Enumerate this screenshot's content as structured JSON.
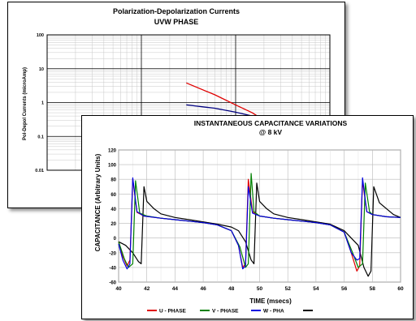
{
  "chart_data": [
    {
      "type": "line",
      "title": "Polarization-Depolarization Currents",
      "subtitle": "UVW PHASE",
      "ylabel": "Pol-Depol Currents (microAmp)",
      "xlabel": "",
      "yscale": "log",
      "ylim": [
        0.01,
        100
      ],
      "xlim": [
        1,
        1000
      ],
      "y_ticks": [
        "100",
        "10",
        "1",
        "0.1",
        "0.01"
      ],
      "grid": true,
      "legend": "none",
      "series": [
        {
          "color": "#e00000",
          "x": [
            30,
            60,
            100,
            150,
            200,
            300,
            400,
            600,
            800
          ],
          "y": [
            3.8,
            1.7,
            0.85,
            0.5,
            0.3,
            0.17,
            0.11,
            0.075,
            0.055
          ]
        },
        {
          "color": "#000080",
          "x": [
            30,
            60,
            100,
            150,
            200,
            300,
            400,
            600,
            800
          ],
          "y": [
            0.85,
            0.68,
            0.52,
            0.4,
            0.28,
            0.17,
            0.12,
            0.08,
            0.055
          ]
        }
      ]
    },
    {
      "type": "line",
      "title": "INSTANTANEOUS CAPACITANCE VARIATIONS",
      "subtitle": "@ 8 kV",
      "xlabel": "TIME (msecs)",
      "ylabel": "CAPACITANCE (Arbitrary Units)",
      "xlim": [
        40,
        60
      ],
      "ylim": [
        -60,
        120
      ],
      "x_ticks": [
        40,
        42,
        44,
        46,
        48,
        50,
        52,
        54,
        56,
        58,
        60
      ],
      "y_ticks": [
        120,
        100,
        80,
        60,
        40,
        20,
        0,
        -20,
        -40,
        -60
      ],
      "grid": true,
      "legend": "bottom",
      "series": [
        {
          "name": "U - PHASE",
          "color": "#e00000",
          "x": [
            40,
            40.3,
            40.6,
            40.8,
            41.0,
            41.3,
            41.8,
            43,
            44,
            45,
            46,
            47,
            48,
            48.5,
            48.8,
            49.0,
            49.2,
            49.5,
            50,
            51,
            52,
            53,
            54,
            55,
            56,
            56.5,
            56.9,
            57.1,
            57.3,
            57.6,
            58,
            59,
            60
          ],
          "y": [
            -5,
            -25,
            -38,
            -30,
            80,
            35,
            30,
            27,
            25,
            23,
            21,
            18,
            10,
            -10,
            -40,
            -35,
            80,
            36,
            30,
            27,
            25,
            23,
            21,
            18,
            8,
            -20,
            -45,
            -38,
            78,
            36,
            32,
            29,
            28
          ]
        },
        {
          "name": "V - PHASE",
          "color": "#008000",
          "x": [
            40,
            40.4,
            40.7,
            41.0,
            41.2,
            41.5,
            42,
            43,
            44,
            45,
            46,
            47,
            48,
            48.6,
            49.0,
            49.2,
            49.4,
            49.6,
            50,
            51,
            52,
            53,
            54,
            55,
            56,
            56.6,
            57.0,
            57.3,
            57.5,
            57.8,
            58,
            59,
            60
          ],
          "y": [
            -5,
            -28,
            -40,
            -35,
            78,
            34,
            30,
            27,
            25,
            23,
            21,
            18,
            10,
            -12,
            -40,
            -35,
            88,
            36,
            30,
            27,
            25,
            23,
            21,
            18,
            8,
            -20,
            -40,
            -35,
            75,
            36,
            32,
            29,
            28
          ]
        },
        {
          "name": "W - PHA",
          "color": "#0000e0",
          "x": [
            40,
            40.3,
            40.6,
            40.8,
            41.0,
            41.3,
            41.8,
            43,
            44,
            45,
            46,
            47,
            48,
            48.5,
            48.8,
            49.0,
            49.2,
            49.5,
            50,
            51,
            52,
            53,
            54,
            55,
            56,
            56.5,
            56.9,
            57.1,
            57.3,
            57.6,
            58,
            59,
            60
          ],
          "y": [
            -8,
            -30,
            -42,
            -35,
            82,
            36,
            30,
            27,
            25,
            23,
            21,
            18,
            10,
            -10,
            -42,
            -38,
            70,
            34,
            30,
            27,
            25,
            23,
            21,
            18,
            8,
            -20,
            -30,
            -28,
            82,
            36,
            32,
            29,
            28
          ]
        },
        {
          "name": "",
          "color": "#000000",
          "x": [
            40,
            40.5,
            41,
            41.4,
            41.6,
            41.8,
            42.0,
            42.5,
            43,
            44,
            45,
            46,
            47,
            48,
            48.5,
            49,
            49.4,
            49.6,
            49.8,
            50.0,
            50.5,
            51,
            52,
            53,
            54,
            55,
            56,
            57,
            57.4,
            57.7,
            57.9,
            58.1,
            58.5,
            59,
            59.5,
            60
          ],
          "y": [
            -5,
            -10,
            -20,
            -32,
            -35,
            70,
            50,
            40,
            33,
            28,
            25,
            22,
            19,
            15,
            10,
            -5,
            -30,
            -35,
            75,
            50,
            40,
            33,
            28,
            25,
            22,
            19,
            10,
            -10,
            -40,
            -52,
            -45,
            70,
            48,
            40,
            32,
            28
          ]
        }
      ]
    }
  ]
}
